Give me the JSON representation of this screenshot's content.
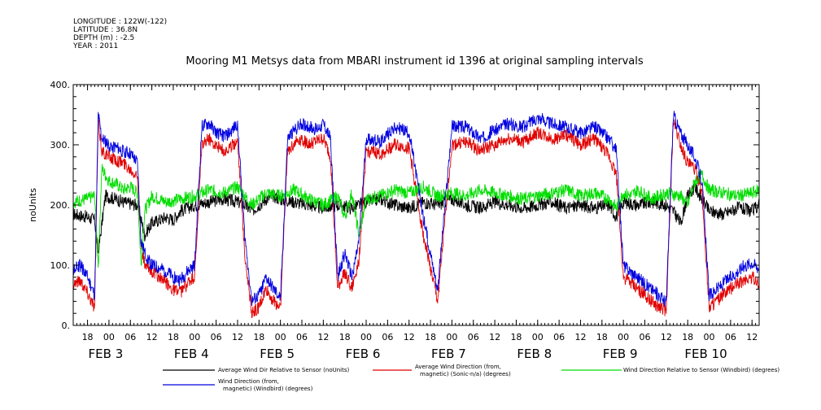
{
  "header": {
    "longitude": "LONGITUDE : 122W(-122)",
    "latitude": "LATITUDE : 36.8N",
    "depth": "DEPTH (m) : -2.5",
    "year": "YEAR : 2011"
  },
  "colors": {
    "black": "#000000",
    "red": "#e00000",
    "green": "#00dd00",
    "blue": "#0000e0"
  },
  "chart_data": {
    "type": "line",
    "title": "Mooring M1 Metsys data from MBARI instrument id 1396 at original sampling intervals",
    "ylabel": "noUnits",
    "xlabel": "",
    "ylim": [
      0,
      400
    ],
    "yticks": [
      "0.",
      "100.",
      "200.",
      "300.",
      "400."
    ],
    "yticks_values": [
      0,
      100,
      200,
      300,
      400
    ],
    "xlim_hours": [
      14,
      206
    ],
    "hour_ticks": [
      {
        "h": 18,
        "label": "18"
      },
      {
        "h": 24,
        "label": "00"
      },
      {
        "h": 30,
        "label": "06"
      },
      {
        "h": 36,
        "label": "12"
      },
      {
        "h": 42,
        "label": "18"
      },
      {
        "h": 48,
        "label": "00"
      },
      {
        "h": 54,
        "label": "06"
      },
      {
        "h": 60,
        "label": "12"
      },
      {
        "h": 66,
        "label": "18"
      },
      {
        "h": 72,
        "label": "00"
      },
      {
        "h": 78,
        "label": "06"
      },
      {
        "h": 84,
        "label": "12"
      },
      {
        "h": 90,
        "label": "18"
      },
      {
        "h": 96,
        "label": "00"
      },
      {
        "h": 102,
        "label": "06"
      },
      {
        "h": 108,
        "label": "12"
      },
      {
        "h": 114,
        "label": "18"
      },
      {
        "h": 120,
        "label": "00"
      },
      {
        "h": 126,
        "label": "06"
      },
      {
        "h": 132,
        "label": "12"
      },
      {
        "h": 138,
        "label": "18"
      },
      {
        "h": 144,
        "label": "00"
      },
      {
        "h": 150,
        "label": "06"
      },
      {
        "h": 156,
        "label": "12"
      },
      {
        "h": 162,
        "label": "18"
      },
      {
        "h": 168,
        "label": "00"
      },
      {
        "h": 174,
        "label": "06"
      },
      {
        "h": 180,
        "label": "12"
      },
      {
        "h": 186,
        "label": "18"
      },
      {
        "h": 192,
        "label": "00"
      },
      {
        "h": 198,
        "label": "06"
      },
      {
        "h": 204,
        "label": "12"
      }
    ],
    "day_labels": [
      {
        "h": 24,
        "label": "FEB  3"
      },
      {
        "h": 48,
        "label": "FEB  4"
      },
      {
        "h": 72,
        "label": "FEB  5"
      },
      {
        "h": 96,
        "label": "FEB  6"
      },
      {
        "h": 120,
        "label": "FEB  7"
      },
      {
        "h": 144,
        "label": "FEB  8"
      },
      {
        "h": 168,
        "label": "FEB  9"
      },
      {
        "h": 192,
        "label": "FEB 10"
      }
    ],
    "series": [
      {
        "name": "Average Wind Dir Relative to Sensor (noUnits)",
        "color": "#000000",
        "x": [
          14,
          18,
          20,
          21,
          23,
          26,
          28,
          32,
          34,
          36,
          40,
          42,
          44,
          48,
          52,
          56,
          60,
          62,
          64,
          66,
          68,
          70,
          72,
          76,
          80,
          84,
          88,
          92,
          96,
          100,
          104,
          108,
          112,
          116,
          120,
          124,
          128,
          132,
          136,
          140,
          144,
          148,
          152,
          156,
          160,
          164,
          166,
          168,
          172,
          176,
          180,
          182,
          184,
          186,
          188,
          190,
          192,
          196,
          200,
          204,
          206
        ],
        "y": [
          185,
          180,
          175,
          120,
          215,
          210,
          205,
          200,
          150,
          170,
          180,
          175,
          190,
          200,
          205,
          210,
          205,
          200,
          190,
          200,
          210,
          215,
          210,
          205,
          200,
          195,
          200,
          195,
          205,
          210,
          200,
          195,
          205,
          200,
          210,
          200,
          195,
          205,
          200,
          195,
          200,
          205,
          195,
          200,
          195,
          200,
          180,
          205,
          200,
          205,
          200,
          190,
          170,
          215,
          230,
          210,
          190,
          185,
          195,
          190,
          200
        ]
      },
      {
        "name": "Average Wind Direction (from, magnetic) (Sonic-n/a) (degrees)",
        "color": "#e00000",
        "x": [
          14,
          16,
          18,
          20,
          21,
          22,
          24,
          26,
          28,
          30,
          32,
          33,
          34,
          36,
          38,
          40,
          42,
          44,
          46,
          48,
          50,
          52,
          54,
          56,
          58,
          60,
          62,
          64,
          66,
          68,
          70,
          72,
          74,
          76,
          78,
          80,
          82,
          84,
          86,
          88,
          90,
          92,
          94,
          96,
          100,
          104,
          108,
          112,
          116,
          120,
          124,
          128,
          132,
          136,
          140,
          144,
          148,
          152,
          156,
          160,
          164,
          166,
          168,
          170,
          172,
          174,
          176,
          178,
          180,
          182,
          184,
          186,
          188,
          190,
          192,
          194,
          196,
          198,
          200,
          202,
          204,
          206
        ],
        "y": [
          70,
          75,
          55,
          30,
          340,
          290,
          280,
          275,
          270,
          260,
          250,
          130,
          100,
          90,
          80,
          70,
          60,
          55,
          70,
          80,
          300,
          310,
          300,
          290,
          295,
          310,
          120,
          20,
          30,
          60,
          40,
          30,
          290,
          305,
          310,
          300,
          305,
          310,
          280,
          60,
          90,
          60,
          110,
          290,
          285,
          300,
          295,
          150,
          40,
          300,
          305,
          290,
          300,
          310,
          305,
          320,
          310,
          315,
          300,
          310,
          280,
          250,
          80,
          70,
          60,
          50,
          40,
          30,
          25,
          340,
          300,
          270,
          260,
          220,
          30,
          40,
          50,
          60,
          70,
          75,
          80,
          70
        ]
      },
      {
        "name": "Wind Direction Relative to Sensor (Windbird) (degrees)",
        "color": "#00dd00",
        "x": [
          14,
          18,
          20,
          21,
          22,
          24,
          26,
          28,
          30,
          32,
          33,
          34,
          36,
          40,
          44,
          48,
          52,
          56,
          60,
          62,
          64,
          66,
          68,
          72,
          76,
          80,
          84,
          88,
          90,
          92,
          94,
          96,
          100,
          104,
          108,
          112,
          116,
          120,
          124,
          128,
          132,
          136,
          140,
          144,
          148,
          152,
          156,
          160,
          164,
          166,
          168,
          170,
          172,
          176,
          180,
          184,
          186,
          188,
          190,
          192,
          196,
          200,
          204,
          206
        ],
        "y": [
          205,
          210,
          215,
          100,
          260,
          240,
          235,
          225,
          230,
          220,
          100,
          190,
          215,
          205,
          210,
          215,
          225,
          220,
          230,
          215,
          200,
          210,
          220,
          215,
          225,
          210,
          200,
          215,
          180,
          220,
          150,
          210,
          215,
          225,
          220,
          230,
          215,
          220,
          215,
          225,
          220,
          215,
          210,
          215,
          220,
          225,
          215,
          220,
          210,
          195,
          220,
          215,
          225,
          210,
          220,
          215,
          200,
          240,
          250,
          225,
          220,
          215,
          220,
          225
        ]
      },
      {
        "name": "Wind Direction (from, magnetic) (Windbird) (degrees)",
        "color": "#0000e0",
        "x": [
          14,
          16,
          18,
          20,
          21,
          22,
          24,
          26,
          28,
          30,
          32,
          33,
          34,
          36,
          38,
          40,
          42,
          44,
          46,
          48,
          50,
          52,
          54,
          56,
          58,
          60,
          62,
          64,
          66,
          68,
          70,
          72,
          74,
          76,
          78,
          80,
          82,
          84,
          86,
          88,
          90,
          92,
          94,
          96,
          100,
          104,
          108,
          112,
          116,
          120,
          124,
          128,
          132,
          136,
          140,
          144,
          148,
          152,
          156,
          160,
          164,
          166,
          168,
          170,
          172,
          174,
          176,
          178,
          180,
          182,
          184,
          186,
          188,
          190,
          192,
          194,
          196,
          198,
          200,
          202,
          204,
          206
        ],
        "y": [
          90,
          100,
          80,
          50,
          350,
          310,
          300,
          295,
          290,
          285,
          270,
          140,
          120,
          100,
          95,
          90,
          80,
          75,
          90,
          100,
          330,
          335,
          320,
          315,
          320,
          335,
          150,
          40,
          50,
          80,
          60,
          45,
          310,
          325,
          335,
          330,
          325,
          335,
          310,
          80,
          120,
          80,
          140,
          310,
          305,
          330,
          320,
          180,
          60,
          330,
          330,
          310,
          325,
          335,
          330,
          345,
          335,
          330,
          320,
          330,
          310,
          290,
          100,
          90,
          80,
          70,
          60,
          50,
          40,
          350,
          320,
          300,
          280,
          240,
          50,
          60,
          70,
          80,
          90,
          100,
          105,
          95
        ]
      }
    ]
  },
  "legend": [
    {
      "label": "Average Wind Dir Relative to Sensor (noUnits)",
      "color": "#000000"
    },
    {
      "label1": "Average Wind Direction (from,",
      "label2": "magnetic) (Sonic-n/a) (degrees)",
      "color": "#e00000"
    },
    {
      "label": "Wind Direction Relative to Sensor (Windbird) (degrees)",
      "color": "#00dd00"
    },
    {
      "label1": "Wind Direction (from,",
      "label2": "magnetic) (Windbird) (degrees)",
      "color": "#0000e0"
    }
  ]
}
